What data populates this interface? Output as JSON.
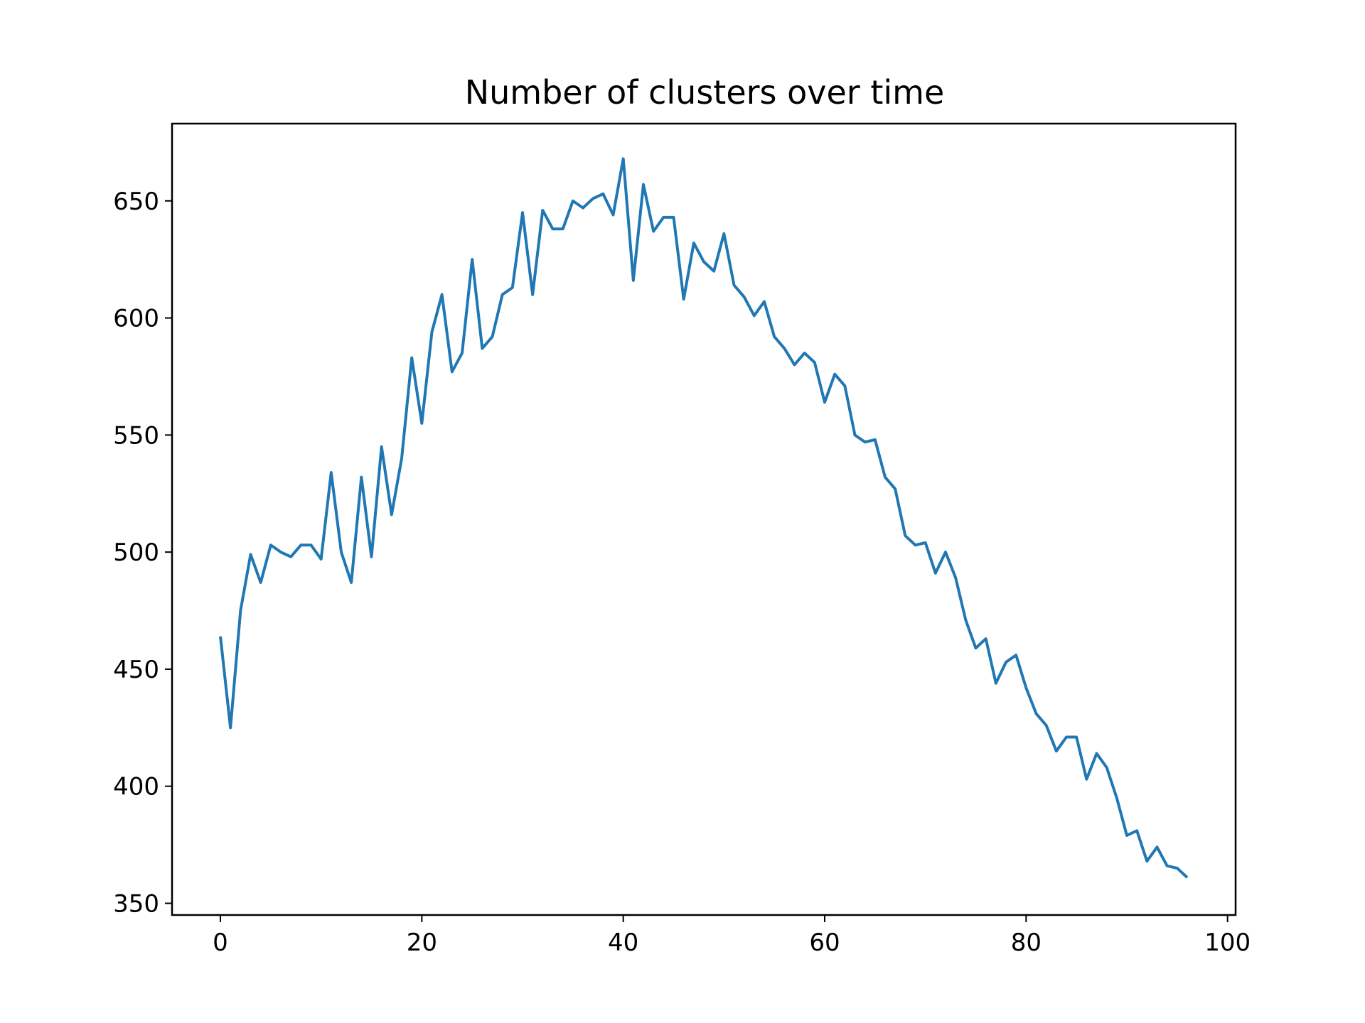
{
  "chart_data": {
    "type": "line",
    "title": "Number of clusters over time",
    "xlabel": "",
    "ylabel": "",
    "xlim": [
      -4.8,
      100.8
    ],
    "ylim": [
      345,
      683
    ],
    "xticks": [
      0,
      20,
      40,
      60,
      80,
      100
    ],
    "yticks": [
      350,
      400,
      450,
      500,
      550,
      600,
      650
    ],
    "grid": false,
    "legend": "none",
    "colors": {
      "series": "#1f77b4",
      "axes": "#000000",
      "background": "#ffffff"
    },
    "series": [
      {
        "x": [
          0,
          1,
          2,
          3,
          4,
          5,
          6,
          7,
          8,
          9,
          10,
          11,
          12,
          13,
          14,
          15,
          16,
          17,
          18,
          19,
          20,
          21,
          22,
          23,
          24,
          25,
          26,
          27,
          28,
          29,
          30,
          31,
          32,
          33,
          34,
          35,
          36,
          37,
          38,
          39,
          40,
          41,
          42,
          43,
          44,
          45,
          46,
          47,
          48,
          49,
          50,
          51,
          52,
          53,
          54,
          55,
          56,
          57,
          58,
          59,
          60,
          61,
          62,
          63,
          64,
          65,
          66,
          67,
          68,
          69,
          70,
          71,
          72,
          73,
          74,
          75,
          76,
          77,
          78,
          79,
          80,
          81,
          82,
          83,
          84,
          85,
          86,
          87,
          88,
          89,
          90,
          91,
          92,
          93,
          94,
          95,
          96
        ],
        "values": [
          464,
          425,
          475,
          499,
          487,
          503,
          500,
          498,
          503,
          503,
          497,
          534,
          500,
          487,
          532,
          498,
          545,
          516,
          540,
          583,
          555,
          594,
          610,
          577,
          585,
          625,
          587,
          592,
          610,
          613,
          645,
          610,
          646,
          638,
          638,
          650,
          647,
          651,
          653,
          644,
          668,
          616,
          657,
          637,
          643,
          643,
          608,
          632,
          624,
          620,
          636,
          614,
          609,
          601,
          607,
          592,
          587,
          580,
          585,
          581,
          564,
          576,
          571,
          550,
          547,
          548,
          532,
          527,
          507,
          503,
          504,
          491,
          500,
          489,
          471,
          459,
          463,
          444,
          453,
          456,
          442,
          431,
          426,
          415,
          421,
          421,
          403,
          414,
          408,
          395,
          379,
          381,
          368,
          374,
          366,
          365,
          361
        ]
      }
    ]
  }
}
